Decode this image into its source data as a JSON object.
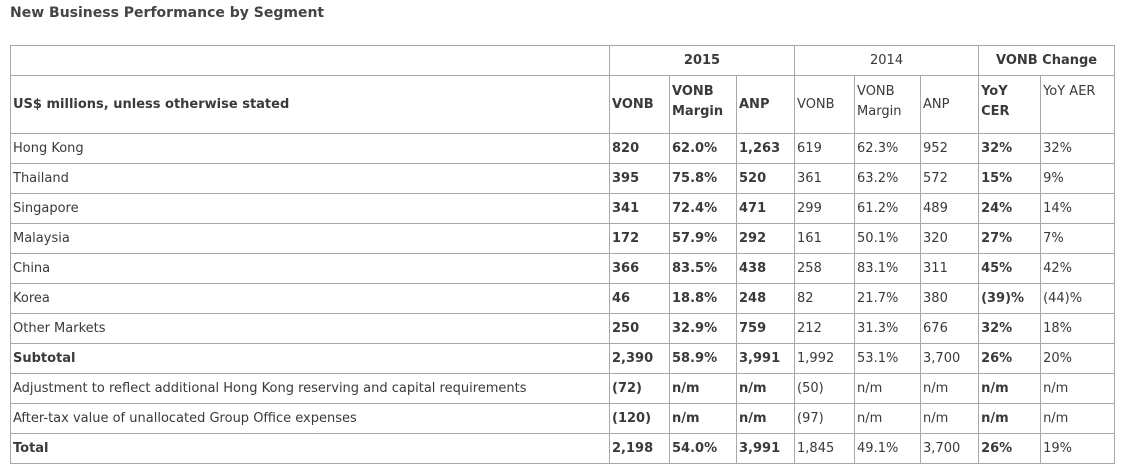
{
  "title": "New Business Performance by Segment",
  "groups": {
    "y2015": "2015",
    "y2014": "2014",
    "change": "VONB Change"
  },
  "header": {
    "row_label": "US$ millions, unless otherwise stated",
    "vonb_2015": "VONB",
    "margin_2015": "VONB Margin",
    "anp_2015": "ANP",
    "vonb_2014": "VONB",
    "margin_2014": "VONB Margin",
    "anp_2014": "ANP",
    "yoy_cer": "YoY CER",
    "yoy_aer": "YoY AER"
  },
  "rows": [
    {
      "label": "Hong Kong",
      "vonb15": "820",
      "margin15": "62.0%",
      "anp15": "1,263",
      "vonb14": "619",
      "margin14": "62.3%",
      "anp14": "952",
      "cer": "32%",
      "aer": "32%"
    },
    {
      "label": "Thailand",
      "vonb15": "395",
      "margin15": "75.8%",
      "anp15": "520",
      "vonb14": "361",
      "margin14": "63.2%",
      "anp14": "572",
      "cer": "15%",
      "aer": "9%"
    },
    {
      "label": "Singapore",
      "vonb15": "341",
      "margin15": "72.4%",
      "anp15": "471",
      "vonb14": "299",
      "margin14": "61.2%",
      "anp14": "489",
      "cer": "24%",
      "aer": "14%"
    },
    {
      "label": "Malaysia",
      "vonb15": "172",
      "margin15": "57.9%",
      "anp15": "292",
      "vonb14": "161",
      "margin14": "50.1%",
      "anp14": "320",
      "cer": "27%",
      "aer": "7%"
    },
    {
      "label": "China",
      "vonb15": "366",
      "margin15": "83.5%",
      "anp15": "438",
      "vonb14": "258",
      "margin14": "83.1%",
      "anp14": "311",
      "cer": "45%",
      "aer": "42%"
    },
    {
      "label": "Korea",
      "vonb15": "46",
      "margin15": "18.8%",
      "anp15": "248",
      "vonb14": "82",
      "margin14": "21.7%",
      "anp14": "380",
      "cer": "(39)%",
      "aer": "(44)%"
    },
    {
      "label": "Other Markets",
      "vonb15": "250",
      "margin15": "32.9%",
      "anp15": "759",
      "vonb14": "212",
      "margin14": "31.3%",
      "anp14": "676",
      "cer": "32%",
      "aer": "18%"
    },
    {
      "label": "Subtotal",
      "vonb15": "2,390",
      "margin15": "58.9%",
      "anp15": "3,991",
      "vonb14": "1,992",
      "margin14": "53.1%",
      "anp14": "3,700",
      "cer": "26%",
      "aer": "20%"
    },
    {
      "label": "Adjustment to reflect additional Hong Kong reserving and capital requirements",
      "vonb15": "(72)",
      "margin15": "n/m",
      "anp15": "n/m",
      "vonb14": "(50)",
      "margin14": "n/m",
      "anp14": "n/m",
      "cer": "n/m",
      "aer": "n/m"
    },
    {
      "label": "After-tax value of unallocated Group Office expenses",
      "vonb15": "(120)",
      "margin15": "n/m",
      "anp15": "n/m",
      "vonb14": "(97)",
      "margin14": "n/m",
      "anp14": "n/m",
      "cer": "n/m",
      "aer": "n/m"
    },
    {
      "label": "Total",
      "vonb15": "2,198",
      "margin15": "54.0%",
      "anp15": "3,991",
      "vonb14": "1,845",
      "margin14": "49.1%",
      "anp14": "3,700",
      "cer": "26%",
      "aer": "19%"
    }
  ]
}
